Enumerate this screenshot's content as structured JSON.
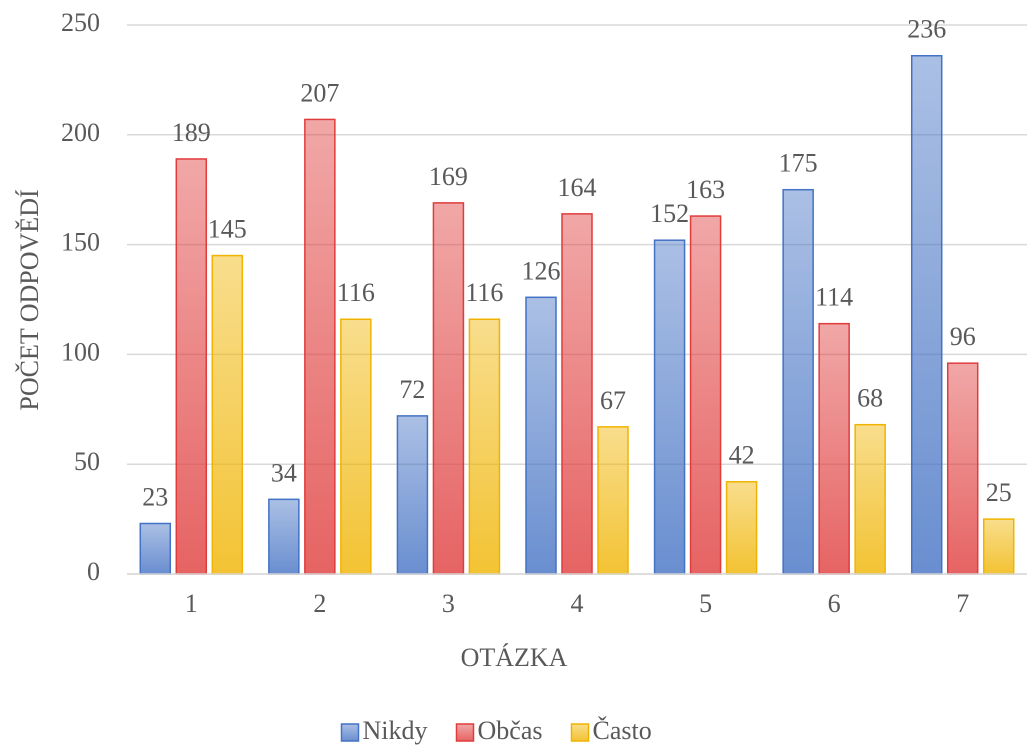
{
  "chart_data": {
    "type": "bar",
    "x_label": "OTÁZKA",
    "y_label": "POČET ODPOVĚDÍ",
    "categories": [
      "1",
      "2",
      "3",
      "4",
      "5",
      "6",
      "7"
    ],
    "series": [
      {
        "name": "Nikdy",
        "color": "#4472c4",
        "values": [
          23,
          34,
          72,
          126,
          152,
          175,
          236
        ]
      },
      {
        "name": "Občas",
        "color": "#e03c3c",
        "values": [
          189,
          207,
          169,
          164,
          163,
          114,
          96
        ]
      },
      {
        "name": "Často",
        "color": "#f0b400",
        "values": [
          145,
          116,
          116,
          67,
          42,
          68,
          25
        ]
      }
    ],
    "ylim": [
      0,
      250
    ],
    "yticks": [
      0,
      50,
      100,
      150,
      200,
      250
    ],
    "grid": true,
    "legend": "bottom"
  }
}
